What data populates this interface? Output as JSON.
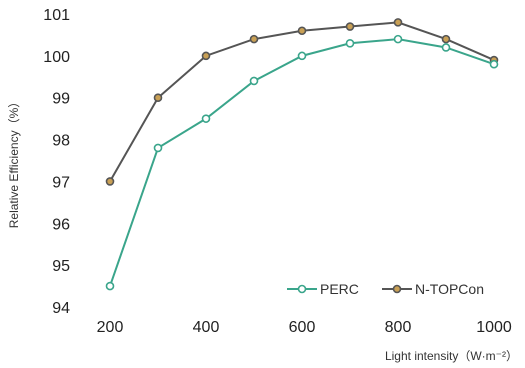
{
  "chart_data": {
    "type": "line",
    "title": "",
    "xlabel": "Light intensity（W·m⁻²）",
    "ylabel": "Relative Efficiency（%）",
    "x": [
      200,
      300,
      400,
      500,
      600,
      700,
      800,
      900,
      1000
    ],
    "xlim": [
      150,
      1050
    ],
    "ylim": [
      94,
      101
    ],
    "xticks": [
      200,
      400,
      600,
      800,
      1000
    ],
    "yticks": [
      94,
      95,
      96,
      97,
      98,
      99,
      100,
      101
    ],
    "grid": false,
    "legend_position": "bottom-right",
    "series": [
      {
        "name": "PERC",
        "color": "#3aa58b",
        "marker_fill": "#ffffff",
        "values": [
          94.5,
          97.8,
          98.5,
          99.4,
          100.0,
          100.3,
          100.4,
          100.2,
          99.8
        ]
      },
      {
        "name": "N-TOPCon",
        "color": "#555555",
        "marker_fill": "#c9a055",
        "values": [
          97.0,
          99.0,
          100.0,
          100.4,
          100.6,
          100.7,
          100.8,
          100.4,
          99.9
        ]
      }
    ]
  }
}
